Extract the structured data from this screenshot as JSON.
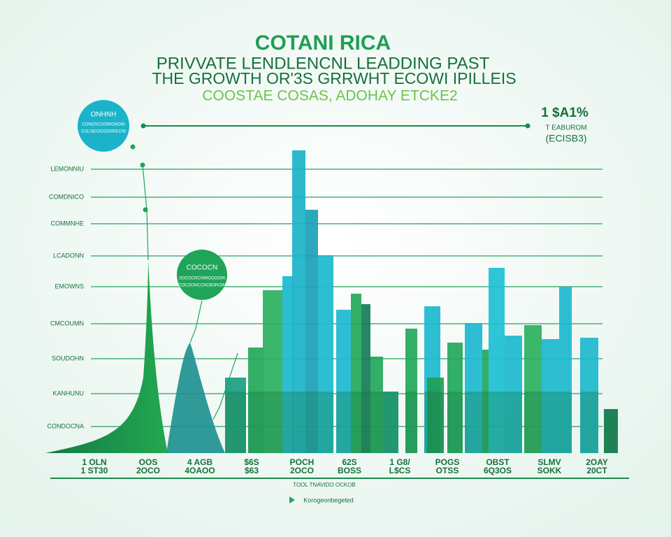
{
  "header": {
    "title": "COTANI RICA",
    "subtitle": "PRIVVATE LENDLENCNL LEADDING PAST",
    "line3": "THE GROWTH OR'3S GRRWHT ECOWI IPILLEIS",
    "line4": "COOSTAE COSAS, ADOHAY ETCKE2"
  },
  "callouts": {
    "left_title": "ONHNH",
    "left_lines": [
      "CONOSCOOIRONOIN",
      "COLOEIOCOOSRECIN"
    ],
    "middle_title": "COCOCN",
    "middle_lines": [
      "SOCOCNCINROOOOIN",
      "COCOONCCNCBOROIN"
    ]
  },
  "top_right": {
    "value": "1 $A1%",
    "line1": "T EABUROM",
    "line2": "(ECISB3)"
  },
  "y_labels": [
    "LEMONNIU",
    "COMDNICO",
    "COMMNHE",
    "LCADONN",
    "EMOWNS",
    "CMCOUMN",
    "SOUDOHN",
    "KANHUNU",
    "CONDOCNA"
  ],
  "x_labels": [
    [
      "1 OLN",
      "1 ST30"
    ],
    [
      "OOS",
      "2OCO"
    ],
    [
      "4 AGB",
      "4OAOO"
    ],
    [
      "$6S",
      "$63"
    ],
    [
      "POCH",
      "2OCO"
    ],
    [
      "62S",
      "BOSS"
    ],
    [
      "1 G8/",
      "L$CS"
    ],
    [
      "POGS",
      "OTSS"
    ],
    [
      "OBST",
      "6Q3OS"
    ],
    [
      "SLMV",
      "SOKK"
    ],
    [
      "2OAY",
      "20CT"
    ]
  ],
  "footer": {
    "line1": "TOOL TNAVIDO OCKOB",
    "line2": "Korogeonbegeted"
  }
}
